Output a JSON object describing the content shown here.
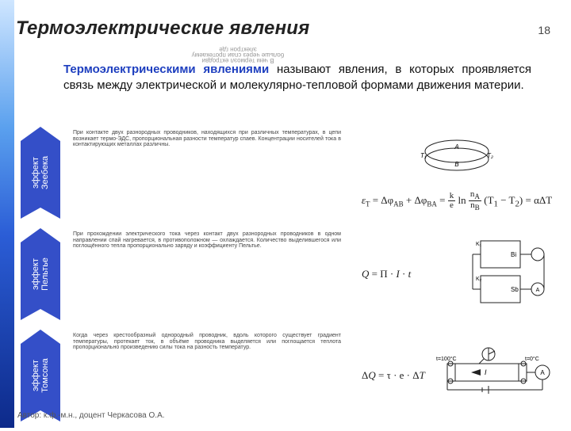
{
  "page": {
    "title": "Термоэлектрические явления",
    "number": "18",
    "definition_bold": "Термоэлектрическими явлениями",
    "definition_rest": " называют явления, в которых проявляется связь между электрической и молекулярно-тепловой формами движения материи.",
    "author": "Автор: к.ф.-м.н., доцент Черкасова О.А.",
    "garble": "В чем\nтермоэл\nектродви\nбольше\nчерез спаи\nпротекаему\nэлектрон\nгде"
  },
  "tag_fill": "#344fc8",
  "effects": [
    {
      "label1": "эффект",
      "label2": "Зеебека",
      "desc": "При контакте двух разнородных проводников, находящихся при различных температурах, в цепи возникает термо-ЭДС, пропорциональная разности температур спаев. Концентрации носителей тока в контактирующих металлах различны.",
      "formula_html": "<i>ε</i><span class='sub'>T</span> = Δφ<span class='sub'>AB</span> + Δφ<span class='sub'>BA</span> = <span class='frac'><span class='n'>k</span><span class='d'>e</span></span> ln <span class='frac'><span class='n'>n<sub>A</sub></span><span class='d'>n<sub>B</sub></span></span> (T<sub>1</sub> − T<sub>2</sub>) = αΔT",
      "svg": "<svg width='92' height='62' viewBox='0 0 92 62'><ellipse cx='46' cy='22' rx='40' ry='14' fill='none' stroke='#222' stroke-width='1'/><ellipse cx='46' cy='32' rx='40' ry='14' fill='none' stroke='#222' stroke-width='1'/><text x='46' y='19' font-size='8' text-anchor='middle' font-style='italic'>A</text><text x='46' y='41' font-size='8' text-anchor='middle' font-style='italic'>B</text><text x='0' y='30' font-size='8' font-style='italic'>T₁</text><text x='84' y='30' font-size='8' font-style='italic'>T₂</text></svg>"
    },
    {
      "label1": "эффект",
      "label2": "Пельтье",
      "desc": "При прохождении электрического тока через контакт двух разнородных проводников в одном направлении спай нагревается, в противоположном — охлаждается. Количество выделившегося или поглощённого тепла пропорционально заряду и коэффициенту Пельтье.",
      "formula_html": "<i>Q</i> = П · <i>I</i> · <i>t</i>",
      "svg": "<svg width='110' height='96' viewBox='0 0 110 96'><rect x='20' y='8' width='50' height='34' fill='none' stroke='#222'/><text x='14' y='14' font-size='7'>K₁</text><text x='58' y='28' font-size='8'>Bi</text><circle cx='92' cy='25' r='8' fill='none' stroke='#222'/><line x1='70' y1='25' x2='84' y2='25' stroke='#222'/><line x1='20' y1='25' x2='10' y2='25' stroke='#222'/><rect x='20' y='52' width='50' height='34' fill='none' stroke='#222'/><text x='14' y='58' font-size='7'>K₂</text><text x='58' y='72' font-size='8'>Sb</text><circle cx='92' cy='69' r='8' fill='none' stroke='#222'/><text x='92' y='72' font-size='7' text-anchor='middle'>A</text><line x1='70' y1='69' x2='84' y2='69' stroke='#222'/><line x1='20' y1='69' x2='10' y2='69' stroke='#222'/><line x1='10' y1='25' x2='10' y2='69' stroke='#222'/><line x1='100' y1='25' x2='100' y2='69' stroke='#222'/></svg>"
    },
    {
      "label1": "эффект",
      "label2": "Томсона",
      "desc": "Когда через крестообразный однородный проводник, вдоль которого существует градиент температуры, протекает ток, в объёме проводника выделяется или поглощается теплота пропорционально произведению силы тока на разность температур.",
      "formula_html": "Δ<i>Q</i> = τ · e · Δ<i>T</i>",
      "svg": "<svg width='150' height='70' viewBox='0 0 150 70'><rect x='18' y='22' width='100' height='22' fill='none' stroke='#222'/><line x1='28' y1='22' x2='28' y2='44' stroke='#222'/><line x1='108' y1='22' x2='108' y2='44' stroke='#222'/><circle cx='22' cy='22' r='3' fill='none' stroke='#222'/><circle cx='22' cy='44' r='3' fill='none' stroke='#222'/><circle cx='114' cy='22' r='3' fill='none' stroke='#222'/><circle cx='114' cy='44' r='3' fill='none' stroke='#222'/><text x='4' y='18' font-size='7'>t=100°C</text><text x='116' y='18' font-size='7'>t=0°C</text><polygon points='48,33 60,29 60,37' fill='#222'/><text x='65' y='36' font-size='9' font-style='italic'>I</text><circle cx='70' cy='10' r='8' fill='none' stroke='#222'/><line x1='70' y1='2' x2='70' y2='18' stroke='#222'/><line x1='70' y1='10' x2='78' y2='6' stroke='#222'/><line x1='58' y1='22' x2='64' y2='16' stroke='#222'/><circle cx='138' cy='33' r='9' fill='none' stroke='#222'/><text x='138' y='36' font-size='8' text-anchor='middle'>A</text><line x1='118' y1='33' x2='129' y2='33' stroke='#222'/><line x1='18' y1='55' x2='138' y2='55' stroke='#222'/><line x1='18' y1='33' x2='18' y2='55' stroke='#222'/><line x1='138' y1='42' x2='138' y2='55' stroke='#222'/><line x1='62' y1='52' x2='62' y2='58' stroke='#222'/><line x1='70' y1='50' x2='70' y2='60' stroke='#222'/></svg>"
    }
  ]
}
